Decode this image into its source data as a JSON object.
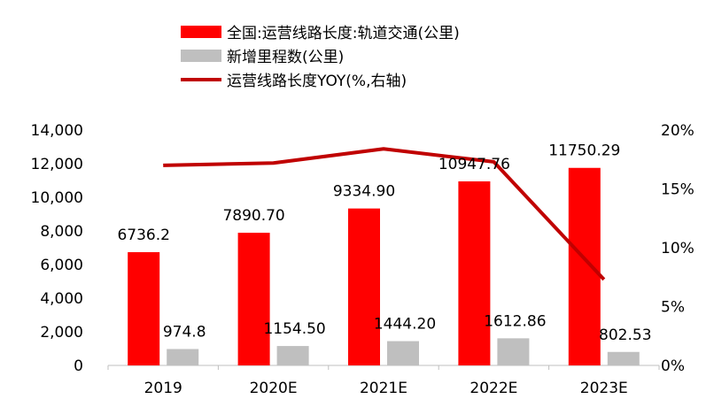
{
  "chart_data": {
    "type": "bar",
    "categories": [
      "2019",
      "2020E",
      "2021E",
      "2022E",
      "2023E"
    ],
    "series": [
      {
        "name": "全国:运营线路长度:轨道交通(公里)",
        "kind": "bar",
        "axis": "left",
        "color": "#ff0000",
        "values": [
          6736.2,
          7890.7,
          9334.9,
          10947.76,
          11750.29
        ],
        "labels": [
          "6736.2",
          "7890.70",
          "9334.90",
          "10947.76",
          "11750.29"
        ]
      },
      {
        "name": "新增里程数(公里)",
        "kind": "bar",
        "axis": "left",
        "color": "#bfbfbf",
        "values": [
          974.8,
          1154.5,
          1444.2,
          1612.86,
          802.53
        ],
        "labels": [
          "974.8",
          "1154.50",
          "1444.20",
          "1612.86",
          "802.53"
        ]
      },
      {
        "name": "运营线路长度YOY(%,右轴)",
        "kind": "line",
        "axis": "right",
        "color": "#c00000",
        "values": [
          17.0,
          17.2,
          18.4,
          17.3,
          7.3
        ]
      }
    ],
    "y_left": {
      "min": 0,
      "max": 14000,
      "ticks": [
        0,
        2000,
        4000,
        6000,
        8000,
        10000,
        12000,
        14000
      ],
      "tick_labels": [
        "0",
        "2,000",
        "4,000",
        "6,000",
        "8,000",
        "10,000",
        "12,000",
        "14,000"
      ]
    },
    "y_right": {
      "min": 0,
      "max": 20,
      "ticks": [
        0,
        5,
        10,
        15,
        20
      ],
      "tick_labels": [
        "0%",
        "5%",
        "10%",
        "15%",
        "20%"
      ]
    },
    "legend_position": "top",
    "grid": false
  }
}
